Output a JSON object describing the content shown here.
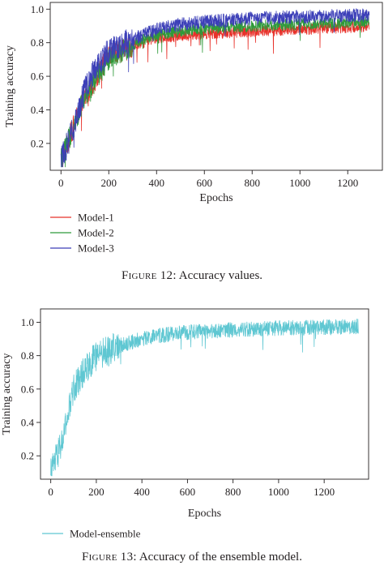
{
  "figures": [
    {
      "caption_label": "Figure 12:",
      "caption_text": "Accuracy values."
    },
    {
      "caption_label": "Figure 13:",
      "caption_text": "Accuracy of the ensemble model."
    }
  ],
  "chart_data": [
    {
      "type": "line",
      "xlabel": "Epochs",
      "ylabel": "Training accuracy",
      "xlim": [
        -45,
        1345
      ],
      "ylim": [
        0.04,
        1.04
      ],
      "xticks": [
        0,
        200,
        400,
        600,
        800,
        1000,
        1200
      ],
      "yticks": [
        0.2,
        0.4,
        0.6,
        0.8,
        1.0
      ],
      "ytick_labels": [
        "0.2",
        "0.4",
        "0.6",
        "0.8",
        "1.0"
      ],
      "grid": false,
      "legend_position": "bottom-left, below plot",
      "n_epochs": 1290,
      "series": [
        {
          "name": "Model-1",
          "color": "#e8312a",
          "trend": [
            [
              0,
              0.1
            ],
            [
              100,
              0.48
            ],
            [
              200,
              0.72
            ],
            [
              300,
              0.78
            ],
            [
              400,
              0.83
            ],
            [
              600,
              0.855
            ],
            [
              800,
              0.87
            ],
            [
              1000,
              0.88
            ],
            [
              1290,
              0.9
            ]
          ],
          "noise": 0.035
        },
        {
          "name": "Model-2",
          "color": "#2f9a3a",
          "trend": [
            [
              0,
              0.1
            ],
            [
              100,
              0.48
            ],
            [
              200,
              0.7
            ],
            [
              300,
              0.79
            ],
            [
              400,
              0.85
            ],
            [
              600,
              0.885
            ],
            [
              800,
              0.9
            ],
            [
              1000,
              0.91
            ],
            [
              1290,
              0.925
            ]
          ],
          "noise": 0.035
        },
        {
          "name": "Model-3",
          "color": "#3c3fb8",
          "trend": [
            [
              0,
              0.1
            ],
            [
              50,
              0.28
            ],
            [
              100,
              0.52
            ],
            [
              150,
              0.66
            ],
            [
              200,
              0.75
            ],
            [
              300,
              0.82
            ],
            [
              400,
              0.88
            ],
            [
              500,
              0.91
            ],
            [
              600,
              0.925
            ],
            [
              800,
              0.945
            ],
            [
              1000,
              0.955
            ],
            [
              1290,
              0.965
            ]
          ],
          "noise": 0.04
        }
      ]
    },
    {
      "type": "line",
      "xlabel": "Epochs",
      "ylabel": "Training accuracy",
      "xlim": [
        -45,
        1395
      ],
      "ylim": [
        0.06,
        1.08
      ],
      "xticks": [
        0,
        200,
        400,
        600,
        800,
        1000,
        1200
      ],
      "yticks": [
        0.2,
        0.4,
        0.6,
        0.8,
        1.0
      ],
      "ytick_labels": [
        "0.2",
        "0.4",
        "0.6",
        "0.8",
        "1.0"
      ],
      "grid": false,
      "legend_position": "bottom-left, below plot",
      "n_epochs": 1350,
      "series": [
        {
          "name": "Model-ensemble",
          "color": "#5fc7d2",
          "trend": [
            [
              0,
              0.1
            ],
            [
              50,
              0.28
            ],
            [
              100,
              0.6
            ],
            [
              150,
              0.72
            ],
            [
              200,
              0.8
            ],
            [
              300,
              0.86
            ],
            [
              400,
              0.9
            ],
            [
              500,
              0.925
            ],
            [
              600,
              0.94
            ],
            [
              800,
              0.955
            ],
            [
              1000,
              0.965
            ],
            [
              1350,
              0.975
            ]
          ],
          "noise": 0.045
        }
      ]
    }
  ]
}
